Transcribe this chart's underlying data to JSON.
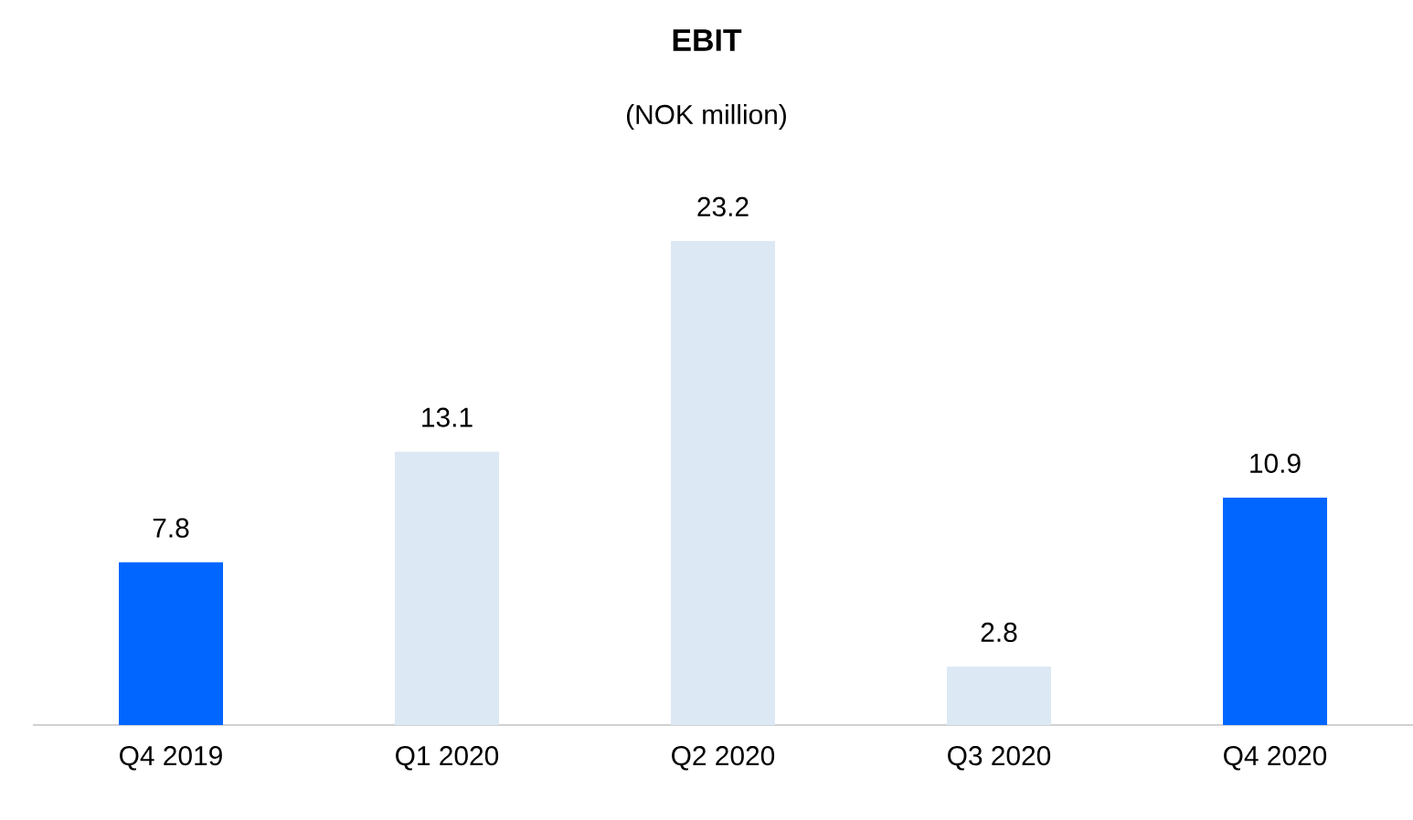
{
  "chart_data": {
    "type": "bar",
    "title": "EBIT",
    "subtitle": "(NOK million)",
    "categories": [
      "Q4 2019",
      "Q1 2020",
      "Q2 2020",
      "Q3 2020",
      "Q4 2020"
    ],
    "values": [
      7.8,
      13.1,
      23.2,
      2.8,
      10.9
    ],
    "colors": [
      "#0066ff",
      "#dde8f5",
      "#dde8f5",
      "#dde8f5",
      "#0066ff"
    ],
    "data_labels": true
  }
}
